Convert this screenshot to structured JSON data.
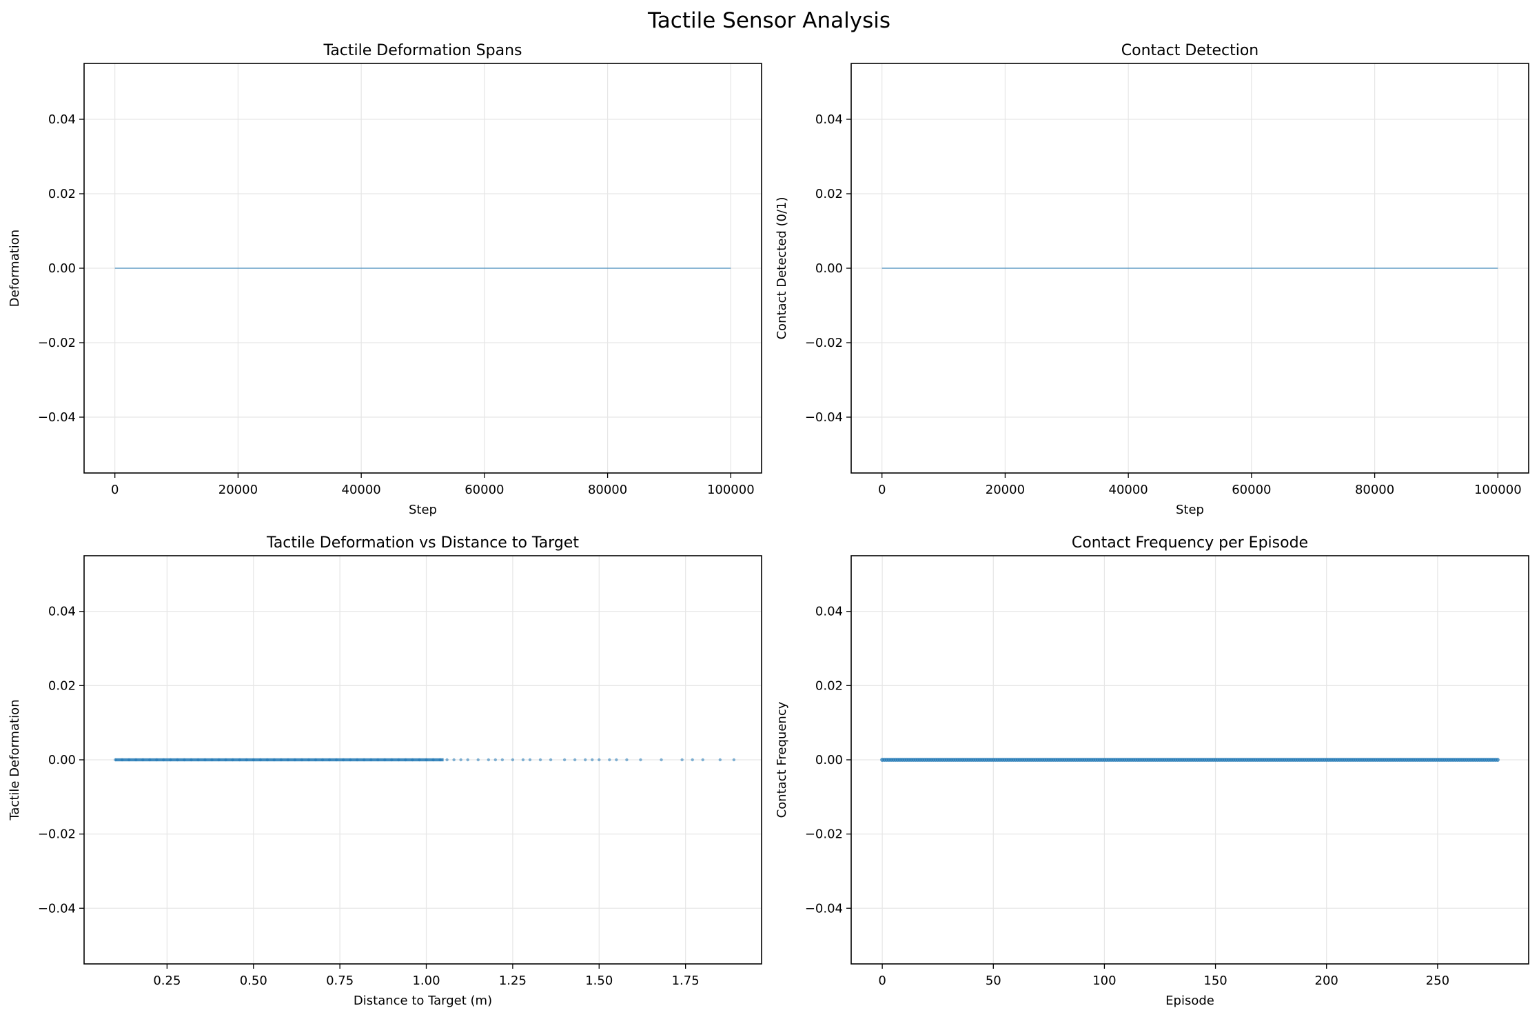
{
  "figure": {
    "suptitle": "Tactile Sensor Analysis"
  },
  "colors": {
    "series": "#1f77b4",
    "grid": "#e6e6e6",
    "axes": "#000000"
  },
  "chart_data": [
    {
      "type": "line",
      "title": "Tactile Deformation Spans",
      "xlabel": "Step",
      "ylabel": "Deformation",
      "xlim": [
        -5000,
        105000
      ],
      "ylim": [
        -0.055,
        0.055
      ],
      "xticks": [
        0,
        20000,
        40000,
        60000,
        80000,
        100000
      ],
      "xtick_labels": [
        "0",
        "20000",
        "40000",
        "60000",
        "80000",
        "100000"
      ],
      "yticks": [
        -0.04,
        -0.02,
        0.0,
        0.02,
        0.04
      ],
      "ytick_labels": [
        "−0.04",
        "−0.02",
        "0.00",
        "0.02",
        "0.04"
      ],
      "grid": true,
      "series": [
        {
          "x": [
            0,
            100000
          ],
          "y": [
            0,
            0
          ]
        }
      ]
    },
    {
      "type": "line",
      "title": "Contact Detection",
      "xlabel": "Step",
      "ylabel": "Contact Detected (0/1)",
      "xlim": [
        -5000,
        105000
      ],
      "ylim": [
        -0.055,
        0.055
      ],
      "xticks": [
        0,
        20000,
        40000,
        60000,
        80000,
        100000
      ],
      "xtick_labels": [
        "0",
        "20000",
        "40000",
        "60000",
        "80000",
        "100000"
      ],
      "yticks": [
        -0.04,
        -0.02,
        0.0,
        0.02,
        0.04
      ],
      "ytick_labels": [
        "−0.04",
        "−0.02",
        "0.00",
        "0.02",
        "0.04"
      ],
      "grid": true,
      "series": [
        {
          "x": [
            0,
            100000
          ],
          "y": [
            0,
            0
          ]
        }
      ]
    },
    {
      "type": "scatter",
      "title": "Tactile Deformation vs Distance to Target",
      "xlabel": "Distance to Target (m)",
      "ylabel": "Tactile Deformation",
      "xlim": [
        0.01,
        1.97
      ],
      "ylim": [
        -0.055,
        0.055
      ],
      "xticks": [
        0.25,
        0.5,
        0.75,
        1.0,
        1.25,
        1.5,
        1.75
      ],
      "xtick_labels": [
        "0.25",
        "0.50",
        "0.75",
        "1.00",
        "1.25",
        "1.50",
        "1.75"
      ],
      "yticks": [
        -0.04,
        -0.02,
        0.0,
        0.02,
        0.04
      ],
      "ytick_labels": [
        "−0.04",
        "−0.02",
        "0.00",
        "0.02",
        "0.04"
      ],
      "grid": true,
      "series": [
        {
          "x": [
            0.1,
            0.12,
            0.14,
            0.16,
            0.18,
            0.2,
            0.22,
            0.24,
            0.26,
            0.28,
            0.3,
            0.32,
            0.34,
            0.36,
            0.38,
            0.4,
            0.42,
            0.44,
            0.46,
            0.48,
            0.5,
            0.52,
            0.54,
            0.56,
            0.58,
            0.6,
            0.62,
            0.64,
            0.66,
            0.68,
            0.7,
            0.72,
            0.74,
            0.76,
            0.78,
            0.8,
            0.82,
            0.84,
            0.86,
            0.88,
            0.9,
            0.92,
            0.94,
            0.96,
            0.98,
            1.0,
            1.02,
            1.04,
            1.06,
            1.08,
            1.1,
            1.12,
            1.15,
            1.18,
            1.2,
            1.22,
            1.25,
            1.28,
            1.3,
            1.33,
            1.36,
            1.4,
            1.43,
            1.46,
            1.48,
            1.5,
            1.53,
            1.55,
            1.58,
            1.62,
            1.68,
            1.74,
            1.77,
            1.8,
            1.85,
            1.89
          ],
          "y": [
            0,
            0,
            0,
            0,
            0,
            0,
            0,
            0,
            0,
            0,
            0,
            0,
            0,
            0,
            0,
            0,
            0,
            0,
            0,
            0,
            0,
            0,
            0,
            0,
            0,
            0,
            0,
            0,
            0,
            0,
            0,
            0,
            0,
            0,
            0,
            0,
            0,
            0,
            0,
            0,
            0,
            0,
            0,
            0,
            0,
            0,
            0,
            0,
            0,
            0,
            0,
            0,
            0,
            0,
            0,
            0,
            0,
            0,
            0,
            0,
            0,
            0,
            0,
            0,
            0,
            0,
            0,
            0,
            0,
            0,
            0,
            0,
            0,
            0,
            0,
            0
          ]
        }
      ]
    },
    {
      "type": "scatter",
      "title": "Contact Frequency per Episode",
      "xlabel": "Episode",
      "ylabel": "Contact Frequency",
      "xlim": [
        -14,
        291
      ],
      "ylim": [
        -0.055,
        0.055
      ],
      "xticks": [
        0,
        50,
        100,
        150,
        200,
        250
      ],
      "xtick_labels": [
        "0",
        "50",
        "100",
        "150",
        "200",
        "250"
      ],
      "yticks": [
        -0.04,
        -0.02,
        0.0,
        0.02,
        0.04
      ],
      "ytick_labels": [
        "−0.04",
        "−0.02",
        "0.00",
        "0.02",
        "0.04"
      ],
      "grid": true,
      "series": [
        {
          "x": [
            0,
            277
          ],
          "y": [
            0,
            0
          ],
          "every_episode": true
        }
      ]
    }
  ]
}
